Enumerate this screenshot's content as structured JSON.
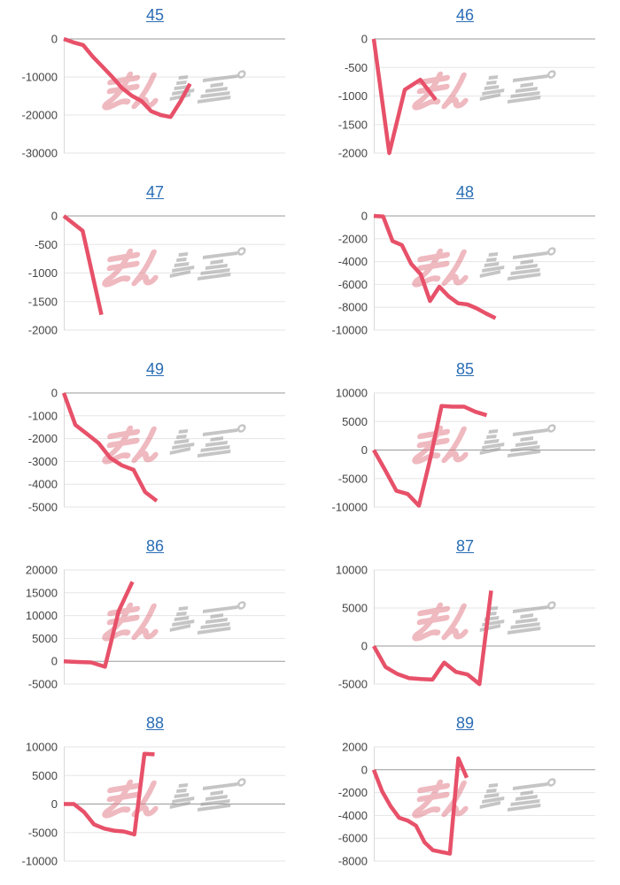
{
  "page": {
    "background": "#ffffff",
    "description": "grid of 10 small slump graphs"
  },
  "style": {
    "line_color": "#e75169",
    "title_color": "#2a6db5",
    "tick_label_color": "#444444",
    "grid_color": "#e6e6e6",
    "baseline_color": "#9a9a9a",
    "axis_line_color": "#d9d9d9",
    "watermark_pink": "#e2808d",
    "watermark_gray": "#a0a0a0"
  },
  "watermark": {
    "icon": "minrepo-watermark-icon",
    "text": "みんレポ"
  },
  "chart_data": [
    {
      "type": "line",
      "title": "45",
      "xlabel": "",
      "ylabel": "",
      "grid": true,
      "legend": "none",
      "ylim": [
        -30000,
        0
      ],
      "yticks": [
        0,
        -10000,
        -20000,
        -30000
      ],
      "span_fraction": 0.57,
      "values": [
        0,
        -900,
        -1600,
        -4700,
        -7300,
        -10000,
        -12900,
        -14900,
        -16300,
        -19000,
        -20000,
        -20500,
        -16500,
        -11800
      ]
    },
    {
      "type": "line",
      "title": "46",
      "xlabel": "",
      "ylabel": "",
      "grid": true,
      "legend": "none",
      "ylim": [
        -2000,
        0
      ],
      "yticks": [
        0,
        -500,
        -1000,
        -1500,
        -2000
      ],
      "span_fraction": 0.28,
      "values": [
        0,
        -2000,
        -890,
        -715,
        -1065
      ]
    },
    {
      "type": "line",
      "title": "47",
      "xlabel": "",
      "ylabel": "",
      "grid": true,
      "legend": "none",
      "ylim": [
        -2000,
        0
      ],
      "yticks": [
        0,
        -500,
        -1000,
        -1500,
        -2000
      ],
      "span_fraction": 0.17,
      "values": [
        0,
        -260,
        -1730
      ]
    },
    {
      "type": "line",
      "title": "48",
      "xlabel": "",
      "ylabel": "",
      "grid": true,
      "legend": "none",
      "ylim": [
        -10000,
        0
      ],
      "yticks": [
        0,
        -2000,
        -4000,
        -6000,
        -8000,
        -10000
      ],
      "span_fraction": 0.55,
      "values": [
        0,
        -50,
        -2200,
        -2550,
        -4200,
        -5100,
        -7450,
        -6200,
        -7050,
        -7650,
        -7750,
        -8100,
        -8550,
        -8950
      ]
    },
    {
      "type": "line",
      "title": "49",
      "xlabel": "",
      "ylabel": "",
      "grid": true,
      "legend": "none",
      "ylim": [
        -5000,
        0
      ],
      "yticks": [
        0,
        -1000,
        -2000,
        -3000,
        -4000,
        -5000
      ],
      "span_fraction": 0.42,
      "values": [
        0,
        -1400,
        -1800,
        -2200,
        -2850,
        -3170,
        -3370,
        -4340,
        -4730
      ]
    },
    {
      "type": "line",
      "title": "85",
      "xlabel": "",
      "ylabel": "",
      "grid": true,
      "legend": "none",
      "ylim": [
        -10000,
        10000
      ],
      "yticks": [
        10000,
        5000,
        0,
        -5000,
        -10000
      ],
      "span_fraction": 0.51,
      "values": [
        0,
        -3500,
        -7150,
        -7700,
        -9750,
        -1500,
        7700,
        7600,
        7600,
        6700,
        6100
      ]
    },
    {
      "type": "line",
      "title": "86",
      "xlabel": "",
      "ylabel": "",
      "grid": true,
      "legend": "none",
      "ylim": [
        -5000,
        20000
      ],
      "yticks": [
        20000,
        15000,
        10000,
        5000,
        0,
        -5000
      ],
      "span_fraction": 0.31,
      "values": [
        0,
        -150,
        -250,
        -1200,
        11000,
        17400
      ]
    },
    {
      "type": "line",
      "title": "87",
      "xlabel": "",
      "ylabel": "",
      "grid": true,
      "legend": "none",
      "ylim": [
        -5000,
        10000
      ],
      "yticks": [
        10000,
        5000,
        0,
        -5000
      ],
      "span_fraction": 0.53,
      "values": [
        0,
        -2760,
        -3660,
        -4210,
        -4330,
        -4410,
        -2170,
        -3400,
        -3740,
        -5000,
        7280
      ]
    },
    {
      "type": "line",
      "title": "88",
      "xlabel": "",
      "ylabel": "",
      "grid": true,
      "legend": "none",
      "ylim": [
        -10000,
        10000
      ],
      "yticks": [
        10000,
        5000,
        0,
        -5000,
        -10000
      ],
      "span_fraction": 0.41,
      "values": [
        0,
        0,
        -1400,
        -3580,
        -4300,
        -4660,
        -4820,
        -5340,
        8800,
        8700
      ]
    },
    {
      "type": "line",
      "title": "89",
      "xlabel": "",
      "ylabel": "",
      "grid": true,
      "legend": "none",
      "ylim": [
        -8000,
        2000
      ],
      "yticks": [
        2000,
        0,
        -2000,
        -4000,
        -6000,
        -8000
      ],
      "span_fraction": 0.42,
      "values": [
        0,
        -1900,
        -3200,
        -4200,
        -4450,
        -4900,
        -6350,
        -7050,
        -7200,
        -7350,
        1000,
        -700
      ]
    }
  ]
}
